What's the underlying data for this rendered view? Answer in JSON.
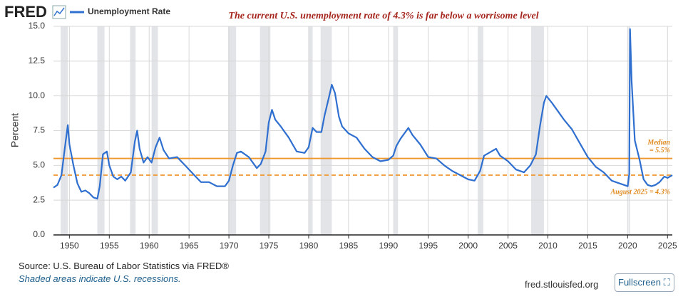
{
  "logo": "FRED",
  "chart_data": {
    "type": "line",
    "title": "The  current  U.S. unemployment rate of 4.3% is far below a worrisome level",
    "y_label": "Percent",
    "xlim": [
      1948,
      2025.6
    ],
    "xticks": [
      1950,
      1955,
      1960,
      1965,
      1970,
      1975,
      1980,
      1985,
      1990,
      1995,
      2000,
      2005,
      2010,
      2015,
      2020,
      2025
    ],
    "ylim": [
      0,
      15
    ],
    "yticks": [
      {
        "value": 0,
        "label": "0.0"
      },
      {
        "value": 2.5,
        "label": "2.5"
      },
      {
        "value": 5,
        "label": "5.0"
      },
      {
        "value": 7.5,
        "label": "7.5"
      },
      {
        "value": 10,
        "label": "10.0"
      },
      {
        "value": 12.5,
        "label": "12.5"
      },
      {
        "value": 15,
        "label": "15.0"
      }
    ],
    "grid": true,
    "x": [
      1948.0,
      1948.5,
      1949.0,
      1949.5,
      1949.8,
      1950.0,
      1950.5,
      1951.0,
      1951.5,
      1952.0,
      1952.5,
      1953.0,
      1953.5,
      1953.8,
      1954.2,
      1954.7,
      1955.0,
      1955.5,
      1956.0,
      1956.5,
      1957.0,
      1957.7,
      1958.2,
      1958.5,
      1958.8,
      1959.3,
      1959.8,
      1960.3,
      1960.8,
      1961.3,
      1961.8,
      1962.5,
      1963.5,
      1964.5,
      1965.5,
      1966.5,
      1967.5,
      1968.5,
      1969.5,
      1970.0,
      1970.5,
      1971.0,
      1971.5,
      1972.5,
      1973.5,
      1974.0,
      1974.6,
      1975.0,
      1975.4,
      1975.8,
      1976.5,
      1977.5,
      1978.5,
      1979.5,
      1980.0,
      1980.5,
      1981.0,
      1981.6,
      1982.0,
      1982.5,
      1982.9,
      1983.3,
      1983.8,
      1984.2,
      1985.0,
      1986.0,
      1987.0,
      1988.0,
      1989.0,
      1990.0,
      1990.6,
      1991.0,
      1991.5,
      1992.5,
      1993.0,
      1994.0,
      1995.0,
      1996.0,
      1997.0,
      1998.0,
      1999.0,
      2000.0,
      2000.8,
      2001.5,
      2002.0,
      2003.5,
      2004.0,
      2005.0,
      2006.0,
      2007.0,
      2007.8,
      2008.5,
      2009.0,
      2009.5,
      2009.8,
      2010.5,
      2011.0,
      2012.0,
      2013.0,
      2014.0,
      2015.0,
      2016.0,
      2017.0,
      2018.0,
      2019.0,
      2020.0,
      2020.2,
      2020.3,
      2020.5,
      2020.9,
      2021.5,
      2022.0,
      2022.5,
      2023.0,
      2023.5,
      2024.0,
      2024.6,
      2025.0,
      2025.6
    ],
    "series": [
      {
        "name": "Unemployment Rate",
        "color": "#2f6fcf",
        "values": [
          3.4,
          3.6,
          4.3,
          6.6,
          7.9,
          6.5,
          5.0,
          3.7,
          3.1,
          3.2,
          3.0,
          2.7,
          2.6,
          3.5,
          5.8,
          6.0,
          5.0,
          4.2,
          4.0,
          4.2,
          3.9,
          4.5,
          6.7,
          7.5,
          6.2,
          5.2,
          5.6,
          5.2,
          6.3,
          7.0,
          6.1,
          5.5,
          5.6,
          5.0,
          4.4,
          3.8,
          3.8,
          3.5,
          3.5,
          3.9,
          5.0,
          5.9,
          6.0,
          5.6,
          4.8,
          5.1,
          6.0,
          8.1,
          9.0,
          8.3,
          7.8,
          7.0,
          6.0,
          5.9,
          6.3,
          7.7,
          7.4,
          7.4,
          8.6,
          9.8,
          10.8,
          10.2,
          8.5,
          7.8,
          7.3,
          7.0,
          6.2,
          5.6,
          5.3,
          5.4,
          5.7,
          6.4,
          6.9,
          7.7,
          7.2,
          6.5,
          5.6,
          5.5,
          5.0,
          4.6,
          4.3,
          4.0,
          3.9,
          4.6,
          5.7,
          6.2,
          5.7,
          5.3,
          4.7,
          4.5,
          5.0,
          5.8,
          7.8,
          9.5,
          10.0,
          9.5,
          9.1,
          8.3,
          7.6,
          6.6,
          5.6,
          4.9,
          4.5,
          3.9,
          3.7,
          3.5,
          4.4,
          14.8,
          11.0,
          6.8,
          5.4,
          4.0,
          3.6,
          3.5,
          3.6,
          3.8,
          4.2,
          4.1,
          4.3
        ]
      }
    ],
    "recessions": [
      [
        1948.9,
        1949.8
      ],
      [
        1953.5,
        1954.4
      ],
      [
        1957.6,
        1958.3
      ],
      [
        1960.3,
        1961.1
      ],
      [
        1969.9,
        1970.9
      ],
      [
        1973.9,
        1975.2
      ],
      [
        1980.0,
        1980.5
      ],
      [
        1981.5,
        1982.9
      ],
      [
        1990.6,
        1991.2
      ],
      [
        2001.2,
        2001.9
      ],
      [
        2007.9,
        2009.5
      ],
      [
        2020.1,
        2020.3
      ]
    ],
    "reference_lines": [
      {
        "value": 5.5,
        "label": [
          "Median",
          "= 5.5%"
        ],
        "color": "#f0962e",
        "dashed": false
      },
      {
        "value": 4.3,
        "label": [
          "August 2025 = 4.3%"
        ],
        "color": "#f0962e",
        "dashed": true
      }
    ]
  },
  "footer": {
    "source": "Source: U.S. Bureau of Labor Statistics via FRED®",
    "note": "Shaded areas indicate U.S. recessions.",
    "site": "fred.stlouisfed.org",
    "button": "Fullscreen"
  }
}
